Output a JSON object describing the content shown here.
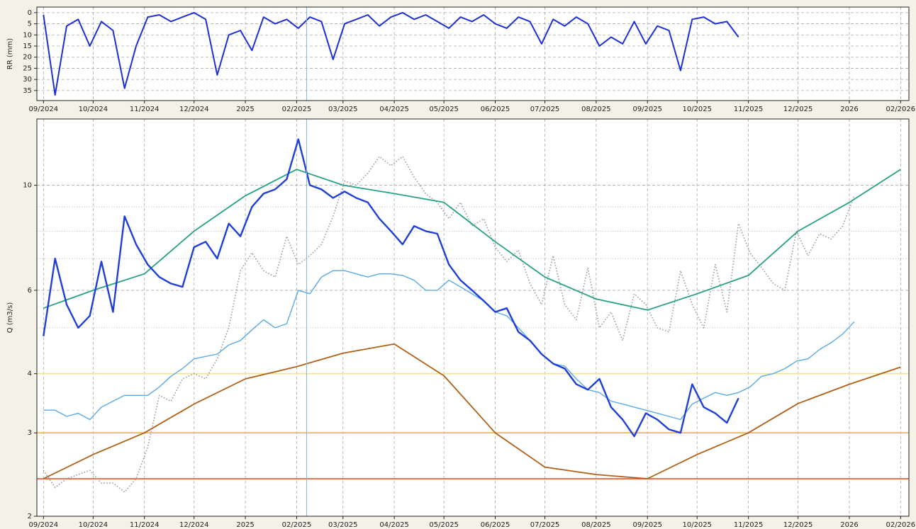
{
  "chart_data": [
    {
      "type": "line",
      "ylabel": "RR (mm)",
      "ylim": [
        39.5,
        -2.5
      ],
      "yticks": [
        0,
        5,
        10,
        15,
        20,
        25,
        30,
        35
      ],
      "grid": true,
      "xlim": [
        "2024-08-28",
        "2026-02-06"
      ],
      "xticks": [
        {
          "value": "2024-09-01",
          "label": "09/2024"
        },
        {
          "value": "2024-10-01",
          "label": "10/2024"
        },
        {
          "value": "2024-11-01",
          "label": "11/2024"
        },
        {
          "value": "2024-12-01",
          "label": "12/2024"
        },
        {
          "value": "2025-01-01",
          "label": "2025"
        },
        {
          "value": "2025-02-01",
          "label": "02/2025"
        },
        {
          "value": "2025-03-01",
          "label": "03/2025"
        },
        {
          "value": "2025-04-01",
          "label": "04/2025"
        },
        {
          "value": "2025-05-01",
          "label": "05/2025"
        },
        {
          "value": "2025-06-01",
          "label": "06/2025"
        },
        {
          "value": "2025-07-01",
          "label": "07/2025"
        },
        {
          "value": "2025-08-01",
          "label": "08/2025"
        },
        {
          "value": "2025-09-01",
          "label": "09/2025"
        },
        {
          "value": "2025-10-01",
          "label": "10/2025"
        },
        {
          "value": "2025-11-01",
          "label": "11/2025"
        },
        {
          "value": "2025-12-01",
          "label": "12/2025"
        },
        {
          "value": "2026-01-01",
          "label": "2026"
        },
        {
          "value": "2026-02-01",
          "label": "02/2026"
        }
      ],
      "vline": {
        "x": "2025-02-07",
        "color": "#7fb8d8"
      },
      "x": [
        "2024-09-01",
        "2024-09-08",
        "2024-09-15",
        "2024-09-22",
        "2024-09-29",
        "2024-10-06",
        "2024-10-13",
        "2024-10-20",
        "2024-10-27",
        "2024-11-03",
        "2024-11-10",
        "2024-11-17",
        "2024-11-24",
        "2024-12-01",
        "2024-12-08",
        "2024-12-15",
        "2024-12-22",
        "2024-12-29",
        "2025-01-05",
        "2025-01-12",
        "2025-01-19",
        "2025-01-26",
        "2025-02-02",
        "2025-02-09",
        "2025-02-16",
        "2025-02-23",
        "2025-03-02",
        "2025-03-09",
        "2025-03-16",
        "2025-03-23",
        "2025-03-30",
        "2025-04-06",
        "2025-04-13",
        "2025-04-20",
        "2025-04-27",
        "2025-05-04",
        "2025-05-11",
        "2025-05-18",
        "2025-05-25",
        "2025-06-01",
        "2025-06-08",
        "2025-06-15",
        "2025-06-22",
        "2025-06-29",
        "2025-07-06",
        "2025-07-13",
        "2025-07-20",
        "2025-07-27",
        "2025-08-03",
        "2025-08-10",
        "2025-08-17",
        "2025-08-24",
        "2025-08-31",
        "2025-09-07",
        "2025-09-14",
        "2025-09-21",
        "2025-09-28",
        "2025-10-05",
        "2025-10-12",
        "2025-10-19",
        "2025-10-26"
      ],
      "series": [
        {
          "color": "#1f2fd8",
          "width": 2,
          "values": [
            1,
            37,
            6,
            3,
            15,
            4,
            8,
            34,
            15,
            2,
            1,
            4,
            2,
            0,
            3,
            28,
            10,
            8,
            17,
            2,
            5,
            3,
            7,
            2,
            4,
            21,
            5,
            3,
            1,
            6,
            2,
            0,
            3,
            1,
            4,
            7,
            2,
            4,
            1,
            5,
            7,
            2,
            4,
            14,
            3,
            6,
            2,
            5,
            15,
            11,
            14,
            4,
            14,
            6,
            8,
            26,
            3,
            2,
            5,
            4,
            11
          ]
        }
      ]
    },
    {
      "type": "line",
      "ylabel": "Q (m3/s)",
      "log": true,
      "ylim": [
        2,
        13.8
      ],
      "yticks": [
        2,
        3,
        4,
        6,
        10
      ],
      "yminorticks": [
        5,
        7,
        8,
        9
      ],
      "grid": true,
      "xlim": [
        "2024-08-28",
        "2026-02-06"
      ],
      "xticks": [
        {
          "value": "2024-09-01",
          "label": "09/2024"
        },
        {
          "value": "2024-10-01",
          "label": "10/2024"
        },
        {
          "value": "2024-11-01",
          "label": "11/2024"
        },
        {
          "value": "2024-12-01",
          "label": "12/2024"
        },
        {
          "value": "2025-01-01",
          "label": "2025"
        },
        {
          "value": "2025-02-01",
          "label": "02/2025"
        },
        {
          "value": "2025-03-01",
          "label": "03/2025"
        },
        {
          "value": "2025-04-01",
          "label": "04/2025"
        },
        {
          "value": "2025-05-01",
          "label": "05/2025"
        },
        {
          "value": "2025-06-01",
          "label": "06/2025"
        },
        {
          "value": "2025-07-01",
          "label": "07/2025"
        },
        {
          "value": "2025-08-01",
          "label": "08/2025"
        },
        {
          "value": "2025-09-01",
          "label": "09/2025"
        },
        {
          "value": "2025-10-01",
          "label": "10/2025"
        },
        {
          "value": "2025-11-01",
          "label": "11/2025"
        },
        {
          "value": "2025-12-01",
          "label": "12/2025"
        },
        {
          "value": "2026-01-01",
          "label": "2026"
        },
        {
          "value": "2026-02-01",
          "label": "02/2026"
        }
      ],
      "vline": {
        "x": "2025-02-07",
        "color": "#7fb8d8"
      },
      "hlines": [
        {
          "value": 4,
          "color": "#f5e870"
        },
        {
          "value": 3,
          "color": "#f0b440"
        },
        {
          "value": 2.4,
          "color": "#e8562a"
        }
      ],
      "x": [
        "2024-09-01",
        "2024-09-08",
        "2024-09-15",
        "2024-09-22",
        "2024-09-29",
        "2024-10-06",
        "2024-10-13",
        "2024-10-20",
        "2024-10-27",
        "2024-11-03",
        "2024-11-10",
        "2024-11-17",
        "2024-11-24",
        "2024-12-01",
        "2024-12-08",
        "2024-12-15",
        "2024-12-22",
        "2024-12-29",
        "2025-01-05",
        "2025-01-12",
        "2025-01-19",
        "2025-01-26",
        "2025-02-02",
        "2025-02-09",
        "2025-02-16",
        "2025-02-23",
        "2025-03-02",
        "2025-03-09",
        "2025-03-16",
        "2025-03-23",
        "2025-03-30",
        "2025-04-06",
        "2025-04-13",
        "2025-04-20",
        "2025-04-27",
        "2025-05-04",
        "2025-05-11",
        "2025-05-18",
        "2025-05-25",
        "2025-06-01",
        "2025-06-08",
        "2025-06-15",
        "2025-06-22",
        "2025-06-29",
        "2025-07-06",
        "2025-07-13",
        "2025-07-20",
        "2025-07-27",
        "2025-08-03",
        "2025-08-10",
        "2025-08-17",
        "2025-08-24",
        "2025-08-31",
        "2025-09-07",
        "2025-09-14",
        "2025-09-21",
        "2025-09-28",
        "2025-10-05",
        "2025-10-12",
        "2025-10-19",
        "2025-10-26",
        "2025-11-02",
        "2025-11-09",
        "2025-11-16",
        "2025-11-23",
        "2025-11-30",
        "2025-12-07",
        "2025-12-14",
        "2025-12-21",
        "2025-12-28",
        "2026-01-04"
      ],
      "series": [
        {
          "color": "#999999",
          "width": 1.6,
          "style": "dotted",
          "values": [
            2.5,
            2.3,
            2.4,
            2.45,
            2.5,
            2.35,
            2.35,
            2.25,
            2.4,
            2.8,
            3.6,
            3.5,
            3.9,
            4.0,
            3.9,
            4.3,
            5.0,
            6.6,
            7.2,
            6.6,
            6.4,
            7.8,
            6.8,
            7.1,
            7.5,
            8.6,
            10.2,
            10.0,
            10.6,
            11.5,
            11.0,
            11.5,
            10.4,
            9.6,
            9.2,
            8.5,
            9.2,
            8.2,
            8.5,
            7.4,
            6.9,
            7.3,
            6.2,
            5.6,
            7.1,
            5.6,
            5.2,
            6.7,
            5.0,
            5.4,
            4.7,
            5.9,
            5.6,
            5.0,
            4.9,
            6.6,
            5.6,
            5.0,
            6.8,
            5.4,
            8.3,
            7.2,
            6.7,
            6.2,
            6.0,
            8.0,
            7.1,
            7.9,
            7.7,
            8.2,
            9.5
          ]
        },
        {
          "color": "#27a085",
          "width": 1.8,
          "x": [
            "2024-09-01",
            "2024-10-01",
            "2024-11-01",
            "2024-12-01",
            "2025-01-01",
            "2025-02-01",
            "2025-03-01",
            "2025-04-01",
            "2025-05-01",
            "2025-06-01",
            "2025-07-01",
            "2025-08-01",
            "2025-09-01",
            "2025-10-01",
            "2025-11-01",
            "2025-12-01",
            "2026-01-01",
            "2026-02-01"
          ],
          "values": [
            5.5,
            6.0,
            6.5,
            8.0,
            9.5,
            10.8,
            10.0,
            9.6,
            9.2,
            7.6,
            6.4,
            5.75,
            5.45,
            5.9,
            6.45,
            8.0,
            9.2,
            10.8
          ]
        },
        {
          "color": "#b06018",
          "width": 1.8,
          "x": [
            "2024-09-01",
            "2024-10-01",
            "2024-11-01",
            "2024-12-01",
            "2025-01-01",
            "2025-02-01",
            "2025-03-01",
            "2025-04-01",
            "2025-05-01",
            "2025-06-01",
            "2025-07-01",
            "2025-08-01",
            "2025-09-01",
            "2025-10-01",
            "2025-11-01",
            "2025-12-01",
            "2026-01-01",
            "2026-02-01"
          ],
          "values": [
            2.4,
            2.7,
            3.0,
            3.45,
            3.9,
            4.14,
            4.42,
            4.62,
            3.96,
            3.0,
            2.54,
            2.45,
            2.4,
            2.7,
            3.0,
            3.46,
            3.8,
            4.13
          ]
        },
        {
          "color": "#5aaae8",
          "width": 1.4,
          "values": [
            3.35,
            3.35,
            3.25,
            3.3,
            3.2,
            3.4,
            3.5,
            3.6,
            3.6,
            3.6,
            3.75,
            3.95,
            4.1,
            4.3,
            4.35,
            4.4,
            4.6,
            4.7,
            4.95,
            5.2,
            5.0,
            5.1,
            6.0,
            5.9,
            6.4,
            6.6,
            6.6,
            6.5,
            6.4,
            6.5,
            6.5,
            6.45,
            6.3,
            6.0,
            6.0,
            6.3,
            6.1,
            5.9,
            5.7,
            5.4,
            5.3,
            5.0,
            4.7,
            4.4,
            4.2,
            4.15,
            3.9,
            3.7,
            3.65,
            3.5,
            3.45,
            3.4,
            3.35,
            3.3,
            3.25,
            3.2,
            3.45,
            3.55,
            3.65,
            3.6,
            3.65,
            3.75,
            3.95,
            4.0,
            4.1,
            4.25,
            4.3,
            4.5,
            4.65,
            4.85,
            5.15
          ]
        },
        {
          "color": "#1f3fd8",
          "width": 2.4,
          "values": [
            4.8,
            7.0,
            5.6,
            5.0,
            5.3,
            6.9,
            5.4,
            8.6,
            7.5,
            6.8,
            6.4,
            6.2,
            6.1,
            7.4,
            7.6,
            7.0,
            8.3,
            7.8,
            9.0,
            9.6,
            9.8,
            10.3,
            12.5,
            10.0,
            9.8,
            9.4,
            9.7,
            9.4,
            9.2,
            8.5,
            8.0,
            7.5,
            8.2,
            8.0,
            7.9,
            6.8,
            6.3,
            6.0,
            5.7,
            5.4,
            5.5,
            4.9,
            4.7,
            4.4,
            4.2,
            4.1,
            3.8,
            3.7,
            3.9,
            3.4,
            3.2,
            2.95,
            3.3,
            3.2,
            3.05,
            3.0,
            3.8,
            3.4,
            3.3,
            3.15,
            3.55,
            null,
            null,
            null,
            null,
            null,
            null,
            null,
            null,
            null,
            null
          ]
        }
      ]
    }
  ]
}
